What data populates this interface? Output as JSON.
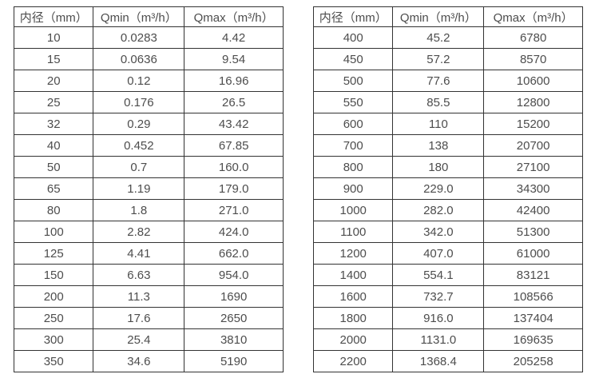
{
  "colors": {
    "border": "#333333",
    "text": "#4d4d4d",
    "background": "#ffffff"
  },
  "tables": [
    {
      "name": "flow-rate-table-small-diameters",
      "headers": [
        "内径（mm）",
        "Qmin（m³/h）",
        "Qmax（m³/h）"
      ],
      "rows": [
        [
          "10",
          "0.0283",
          "4.42"
        ],
        [
          "15",
          "0.0636",
          "9.54"
        ],
        [
          "20",
          "0.12",
          "16.96"
        ],
        [
          "25",
          "0.176",
          "26.5"
        ],
        [
          "32",
          "0.29",
          "43.42"
        ],
        [
          "40",
          "0.452",
          "67.85"
        ],
        [
          "50",
          "0.7",
          "160.0"
        ],
        [
          "65",
          "1.19",
          "179.0"
        ],
        [
          "80",
          "1.8",
          "271.0"
        ],
        [
          "100",
          "2.82",
          "424.0"
        ],
        [
          "125",
          "4.41",
          "662.0"
        ],
        [
          "150",
          "6.63",
          "954.0"
        ],
        [
          "200",
          "11.3",
          "1690"
        ],
        [
          "250",
          "17.6",
          "2650"
        ],
        [
          "300",
          "25.4",
          "3810"
        ],
        [
          "350",
          "34.6",
          "5190"
        ]
      ]
    },
    {
      "name": "flow-rate-table-large-diameters",
      "headers": [
        "内径（mm）",
        "Qmin（m³/h）",
        "Qmax（m³/h）"
      ],
      "rows": [
        [
          "400",
          "45.2",
          "6780"
        ],
        [
          "450",
          "57.2",
          "8570"
        ],
        [
          "500",
          "77.6",
          "10600"
        ],
        [
          "550",
          "85.5",
          "12800"
        ],
        [
          "600",
          "110",
          "15200"
        ],
        [
          "700",
          "138",
          "20700"
        ],
        [
          "800",
          "180",
          "27100"
        ],
        [
          "900",
          "229.0",
          "34300"
        ],
        [
          "1000",
          "282.0",
          "42400"
        ],
        [
          "1100",
          "342.0",
          "51300"
        ],
        [
          "1200",
          "407.0",
          "61000"
        ],
        [
          "1400",
          "554.1",
          "83121"
        ],
        [
          "1600",
          "732.7",
          "108566"
        ],
        [
          "1800",
          "916.0",
          "137404"
        ],
        [
          "2000",
          "1131.0",
          "169635"
        ],
        [
          "2200",
          "1368.4",
          "205258"
        ]
      ]
    }
  ]
}
